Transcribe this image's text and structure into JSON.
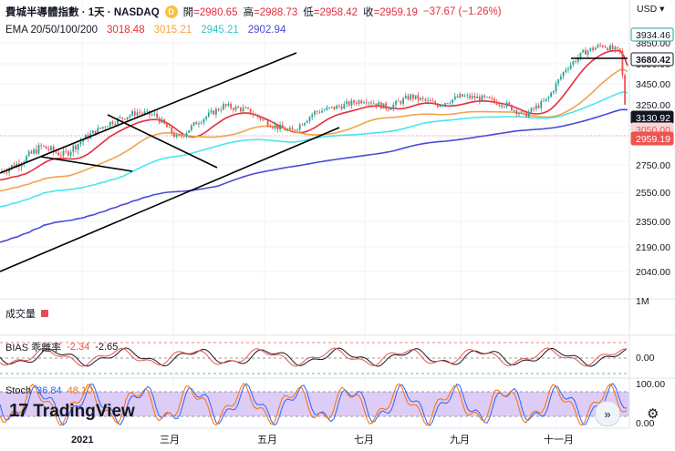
{
  "header": {
    "symbol": "費城半導體指數 · 1天 · NASDAQ",
    "badge": "D",
    "open_label": "開",
    "open": "2980.65",
    "high_label": "高",
    "high": "2988.73",
    "low_label": "低",
    "low": "2958.42",
    "close_label": "收",
    "close": "2959.19",
    "change": "−37.67 (−1.26%)"
  },
  "ema": {
    "label": "EMA 20/50/100/200",
    "v20": "3018.48",
    "v50": "3015.21",
    "v100": "2945.21",
    "v200": "2902.94",
    "colors": {
      "ema20": "#e0303e",
      "ema50": "#f2a34a",
      "ema100": "#48e6ee",
      "ema200": "#4b4bd6"
    }
  },
  "currency": "USD",
  "volume_label": "成交量",
  "bias": {
    "label": "BIAS 乖離率",
    "v1": "-2.34",
    "v2": "-2.65",
    "axis": [
      "0.00"
    ]
  },
  "stoch": {
    "label": "Stoch",
    "k": "36.84",
    "d": "48.10",
    "axis": [
      "100.00",
      "0.00"
    ]
  },
  "logo": "TradingView",
  "price_axis": [
    "3850.00",
    "3650.00",
    "3450.00",
    "3250.00",
    "2950.00",
    "2750.00",
    "2550.00",
    "2350.00",
    "2190.00",
    "2040.00",
    "1M"
  ],
  "price_tags": [
    {
      "value": "3934.46",
      "style": "outline-green"
    },
    {
      "value": "3680.42",
      "style": "black-outline"
    },
    {
      "value": "3130.92",
      "style": "black"
    },
    {
      "value": "3050.00",
      "style": "red-light"
    },
    {
      "value": "2959.19",
      "style": "red"
    }
  ],
  "time_axis": [
    "2021",
    "三月",
    "五月",
    "七月",
    "九月",
    "十一月"
  ],
  "colors": {
    "up": "#26a69a",
    "down": "#ef5350",
    "stoch_fill": "#d9c6f5",
    "stoch_k": "#2962ff",
    "stoch_d": "#ff6d00",
    "bias1": "#131722",
    "bias2": "#ef5350"
  },
  "chart_data": {
    "type": "candlestick",
    "xlabel": "",
    "ylabel": "",
    "ylim": [
      1900,
      4050
    ],
    "x": [
      "2021-01",
      "2021-02",
      "2021-03",
      "2021-04",
      "2021-05",
      "2021-06",
      "2021-07",
      "2021-08",
      "2021-09",
      "2021-10",
      "2021-11",
      "2021-12"
    ],
    "close": [
      2820,
      3080,
      2930,
      3240,
      2980,
      3180,
      3220,
      3300,
      3350,
      3250,
      3800,
      2959.19
    ],
    "ema": [
      {
        "name": "EMA 20",
        "last": 3018.48
      },
      {
        "name": "EMA 50",
        "last": 3015.21
      },
      {
        "name": "EMA 100",
        "last": 2945.21
      },
      {
        "name": "EMA 200",
        "last": 2902.94
      }
    ],
    "bias": {
      "v1": -2.34,
      "v2": -2.65
    },
    "stoch": {
      "k": 36.84,
      "d": 48.1
    }
  }
}
